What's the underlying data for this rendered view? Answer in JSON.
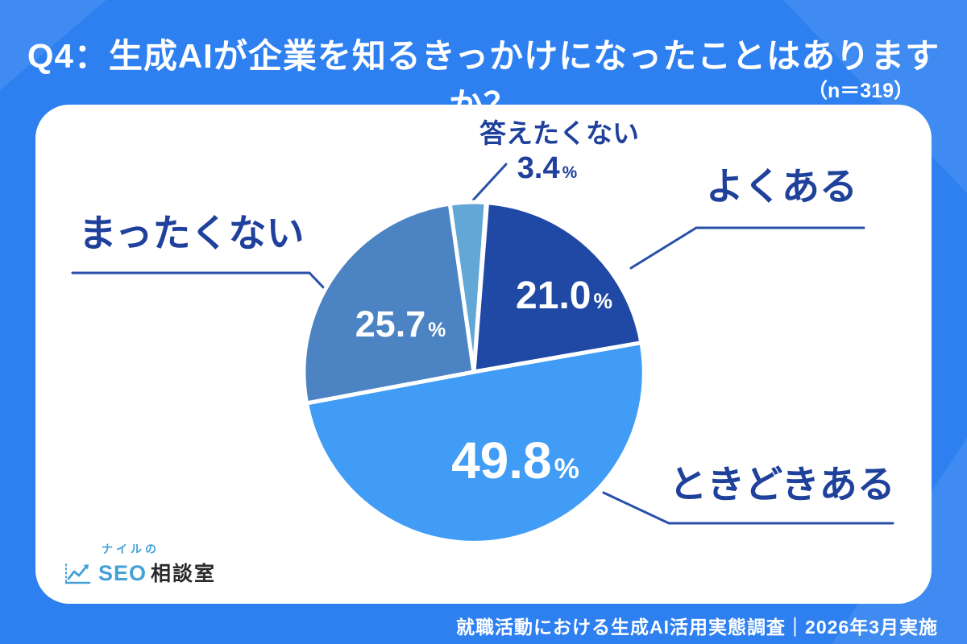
{
  "title": "Q4：生成AIが企業を知るきっかけになったことはありますか？",
  "sample_size": "（n＝319）",
  "footer": "就職活動における生成AI活用実態調査｜2026年3月実施",
  "percent_sign": "%",
  "logo": {
    "icon": "line-chart-icon",
    "line1": "ナイルの",
    "seo": "SEO",
    "rest": "相談室"
  },
  "colors": {
    "background": "#2e80f0",
    "card": "#ffffff",
    "label_text": "#1f419b",
    "leader_line": "#2a4fa9",
    "percent_text": "#ffffff"
  },
  "chart_data": {
    "type": "pie",
    "title": "Q4：生成AIが企業を知るきっかけになったことはありますか？",
    "sample_size_n": 319,
    "start_angle_deg": 4.5,
    "direction": "clockwise",
    "legend_position": "callout-labels",
    "slices": [
      {
        "label": "よくある",
        "value": 21.0,
        "display": "21.0",
        "color": "#2049a6"
      },
      {
        "label": "ときどきある",
        "value": 49.8,
        "display": "49.8",
        "color": "#419cf5"
      },
      {
        "label": "まったくない",
        "value": 25.7,
        "display": "25.7",
        "color": "#4b83c3"
      },
      {
        "label": "答えたくない",
        "value": 3.4,
        "display": "3.4",
        "color": "#62a7d6"
      }
    ]
  }
}
